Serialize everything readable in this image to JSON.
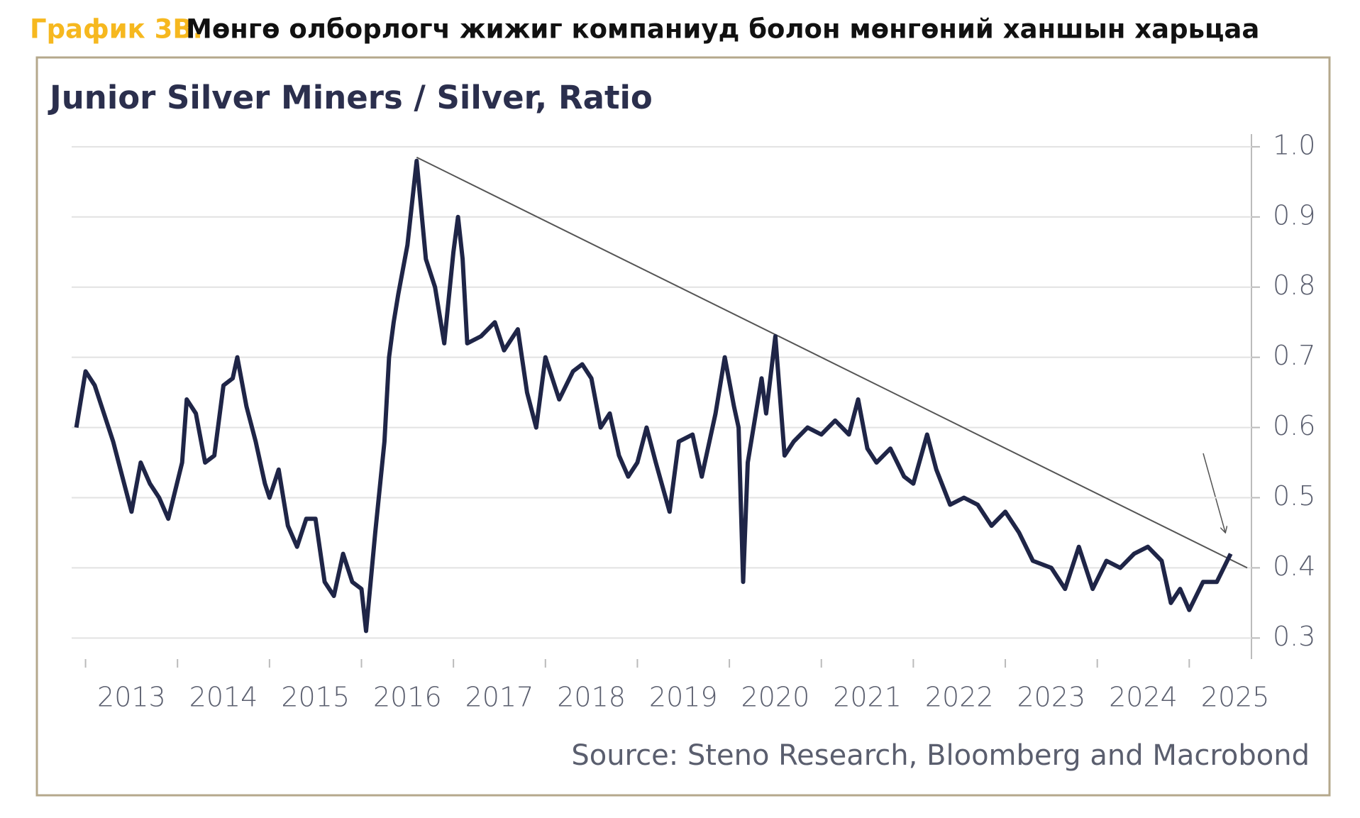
{
  "header": {
    "label": "График 3В.",
    "title": "Мөнгө олборлогч жижиг компаниуд болон мөнгөний ханшын харьцаа"
  },
  "chart_data": {
    "type": "line",
    "title": "Junior Silver Miners / Silver, Ratio",
    "source": "Source: Steno Research, Bloomberg and Macrobond",
    "x": [
      2012.9,
      2013.0,
      2013.1,
      2013.2,
      2013.3,
      2013.4,
      2013.5,
      2013.6,
      2013.7,
      2013.8,
      2013.9,
      2014.05,
      2014.1,
      2014.2,
      2014.3,
      2014.4,
      2014.5,
      2014.6,
      2014.65,
      2014.75,
      2014.85,
      2014.95,
      2015.0,
      2015.1,
      2015.2,
      2015.3,
      2015.4,
      2015.5,
      2015.6,
      2015.7,
      2015.8,
      2015.9,
      2016.0,
      2016.05,
      2016.15,
      2016.25,
      2016.3,
      2016.35,
      2016.4,
      2016.5,
      2016.6,
      2016.7,
      2016.8,
      2016.9,
      2017.0,
      2017.05,
      2017.1,
      2017.15,
      2017.3,
      2017.45,
      2017.55,
      2017.7,
      2017.8,
      2017.9,
      2018.0,
      2018.15,
      2018.3,
      2018.4,
      2018.5,
      2018.6,
      2018.7,
      2018.8,
      2018.9,
      2019.0,
      2019.1,
      2019.2,
      2019.35,
      2019.45,
      2019.6,
      2019.7,
      2019.85,
      2019.95,
      2020.05,
      2020.1,
      2020.15,
      2020.2,
      2020.35,
      2020.4,
      2020.5,
      2020.6,
      2020.7,
      2020.85,
      2021.0,
      2021.15,
      2021.3,
      2021.4,
      2021.5,
      2021.6,
      2021.75,
      2021.9,
      2022.0,
      2022.15,
      2022.25,
      2022.4,
      2022.55,
      2022.7,
      2022.85,
      2023.0,
      2023.15,
      2023.3,
      2023.5,
      2023.65,
      2023.8,
      2023.95,
      2024.1,
      2024.25,
      2024.4,
      2024.55,
      2024.7,
      2024.8,
      2024.9,
      2025.0,
      2025.15,
      2025.3,
      2025.45
    ],
    "series": [
      {
        "color": "#1f2547",
        "values": [
          0.6,
          0.68,
          0.66,
          0.62,
          0.58,
          0.53,
          0.48,
          0.55,
          0.52,
          0.5,
          0.47,
          0.55,
          0.64,
          0.62,
          0.55,
          0.56,
          0.66,
          0.67,
          0.7,
          0.63,
          0.58,
          0.52,
          0.5,
          0.54,
          0.46,
          0.43,
          0.47,
          0.47,
          0.38,
          0.36,
          0.42,
          0.38,
          0.37,
          0.31,
          0.45,
          0.58,
          0.7,
          0.75,
          0.79,
          0.86,
          0.98,
          0.84,
          0.8,
          0.72,
          0.85,
          0.9,
          0.84,
          0.72,
          0.73,
          0.75,
          0.71,
          0.74,
          0.65,
          0.6,
          0.7,
          0.64,
          0.68,
          0.69,
          0.67,
          0.6,
          0.62,
          0.56,
          0.53,
          0.55,
          0.6,
          0.55,
          0.48,
          0.58,
          0.59,
          0.53,
          0.62,
          0.7,
          0.63,
          0.6,
          0.38,
          0.55,
          0.67,
          0.62,
          0.73,
          0.56,
          0.58,
          0.6,
          0.59,
          0.61,
          0.59,
          0.64,
          0.57,
          0.55,
          0.57,
          0.53,
          0.52,
          0.59,
          0.54,
          0.49,
          0.5,
          0.49,
          0.46,
          0.48,
          0.45,
          0.41,
          0.4,
          0.37,
          0.43,
          0.37,
          0.41,
          0.4,
          0.42,
          0.43,
          0.41,
          0.35,
          0.37,
          0.34,
          0.38,
          0.38,
          0.42
        ]
      }
    ],
    "trendline": {
      "x": [
        2016.6,
        2025.63
      ],
      "y": [
        0.985,
        0.4
      ],
      "color": "#555555"
    },
    "xlim": [
      2012.88,
      2025.63
    ],
    "xticks": [
      {
        "value": 2013,
        "label": "2013"
      },
      {
        "value": 2014,
        "label": "2014"
      },
      {
        "value": 2015,
        "label": "2015"
      },
      {
        "value": 2016,
        "label": "2016"
      },
      {
        "value": 2017,
        "label": "2017"
      },
      {
        "value": 2018,
        "label": "2018"
      },
      {
        "value": 2019,
        "label": "2019"
      },
      {
        "value": 2020,
        "label": "2020"
      },
      {
        "value": 2021,
        "label": "2021"
      },
      {
        "value": 2022,
        "label": "2022"
      },
      {
        "value": 2023,
        "label": "2023"
      },
      {
        "value": 2024,
        "label": "2024"
      },
      {
        "value": 2025,
        "label": "2025"
      }
    ],
    "ylim": [
      0.27,
      1.01
    ],
    "yticks": [
      {
        "value": 1.0,
        "label": "1.0"
      },
      0.9,
      0.8,
      0.7,
      0.6,
      0.5,
      0.4,
      0.3
    ],
    "grid": true
  }
}
